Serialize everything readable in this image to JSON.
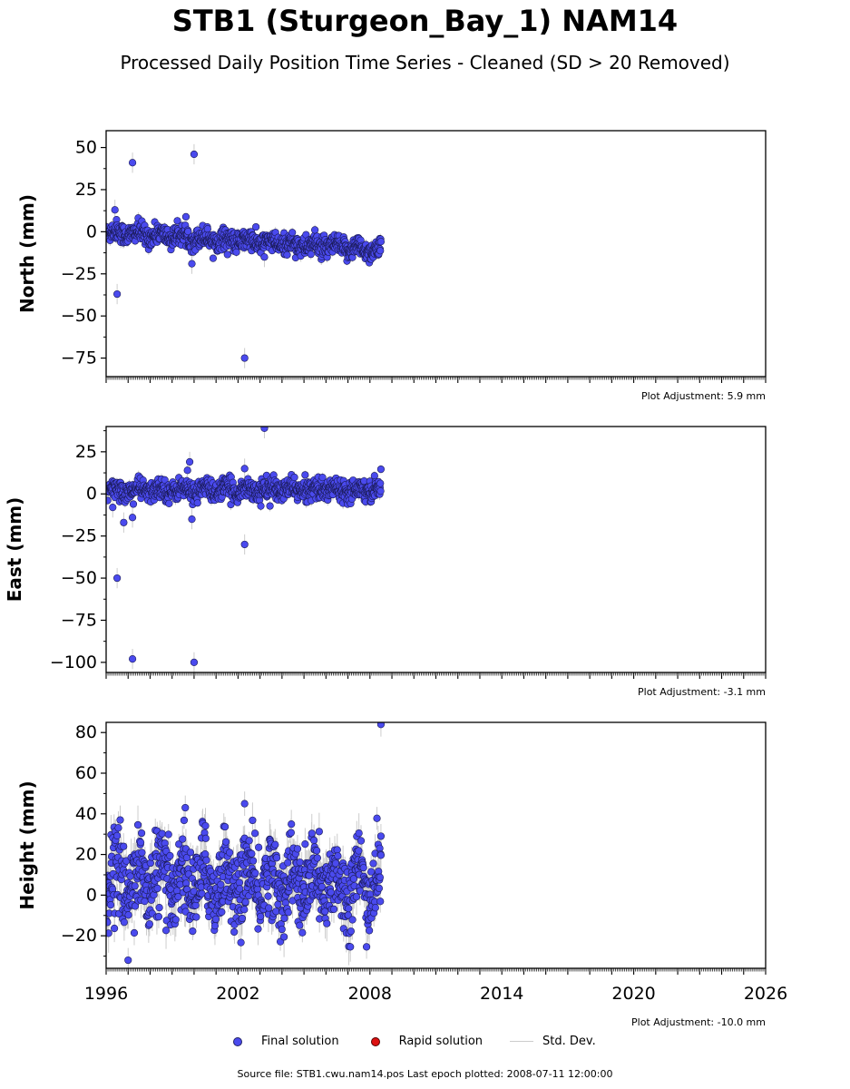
{
  "title": "STB1 (Sturgeon_Bay_1) NAM14",
  "subtitle": "Processed Daily Position Time Series - Cleaned (SD > 20 Removed)",
  "chart_data": [
    {
      "type": "scatter",
      "ylabel": "North (mm)",
      "xlim": [
        1996,
        2026
      ],
      "ylim": [
        -86,
        60
      ],
      "yticks": [
        50,
        25,
        0,
        -25,
        -50,
        -75
      ],
      "trend": {
        "start": [
          1996,
          0
        ],
        "end": [
          2008.5,
          -11
        ]
      },
      "scatter_sd": 3,
      "outliers": [
        {
          "x": 1996.4,
          "y": 13
        },
        {
          "x": 1996.5,
          "y": -37
        },
        {
          "x": 1997.2,
          "y": 41
        },
        {
          "x": 2000.0,
          "y": 46
        },
        {
          "x": 1999.9,
          "y": -19
        },
        {
          "x": 2002.3,
          "y": -75
        },
        {
          "x": 2003.2,
          "y": -15
        }
      ],
      "plot_adjustment": "Plot Adjustment: 5.9 mm"
    },
    {
      "type": "scatter",
      "ylabel": "East (mm)",
      "xlim": [
        1996,
        2026
      ],
      "ylim": [
        -106,
        40
      ],
      "yticks": [
        25,
        0,
        -25,
        -50,
        -75,
        -100
      ],
      "trend": {
        "start": [
          1996,
          2
        ],
        "end": [
          2008.5,
          3
        ]
      },
      "scatter_sd": 3,
      "outliers": [
        {
          "x": 1996.3,
          "y": -8
        },
        {
          "x": 1996.5,
          "y": -50
        },
        {
          "x": 1996.8,
          "y": -17
        },
        {
          "x": 1997.2,
          "y": -14
        },
        {
          "x": 1997.2,
          "y": -98
        },
        {
          "x": 1999.8,
          "y": 19
        },
        {
          "x": 1999.7,
          "y": 14
        },
        {
          "x": 2000.0,
          "y": -100
        },
        {
          "x": 1999.9,
          "y": -15
        },
        {
          "x": 2002.3,
          "y": 15
        },
        {
          "x": 2002.3,
          "y": -30
        },
        {
          "x": 2003.2,
          "y": 39
        }
      ],
      "plot_adjustment": "Plot Adjustment: -3.1 mm"
    },
    {
      "type": "scatter",
      "ylabel": "Height (mm)",
      "xlim": [
        1996,
        2026
      ],
      "ylim": [
        -36,
        85
      ],
      "yticks": [
        80,
        60,
        40,
        20,
        0,
        -20
      ],
      "xticks": [
        1996,
        2002,
        2008,
        2014,
        2020,
        2026
      ],
      "trend": {
        "start": [
          1996,
          8
        ],
        "end": [
          2008.5,
          5
        ]
      },
      "scatter_sd": 10,
      "outliers": [
        {
          "x": 2008.5,
          "y": 84
        },
        {
          "x": 2002.3,
          "y": 45
        },
        {
          "x": 1999.6,
          "y": 43
        },
        {
          "x": 1997.0,
          "y": -32
        },
        {
          "x": 2008.5,
          "y": 29
        }
      ],
      "plot_adjustment": "Plot Adjustment: -10.0 mm"
    }
  ],
  "legend": {
    "final": "Final solution",
    "rapid": "Rapid solution",
    "sd": "Std. Dev."
  },
  "colors": {
    "final_fill": "#4a4aee",
    "final_edge": "#1a1a55",
    "rapid": "#dd1111",
    "sd": "#cccccc"
  },
  "source": "Source file: STB1.cwu.nam14.pos  Last epoch plotted: 2008-07-11 12:00:00"
}
